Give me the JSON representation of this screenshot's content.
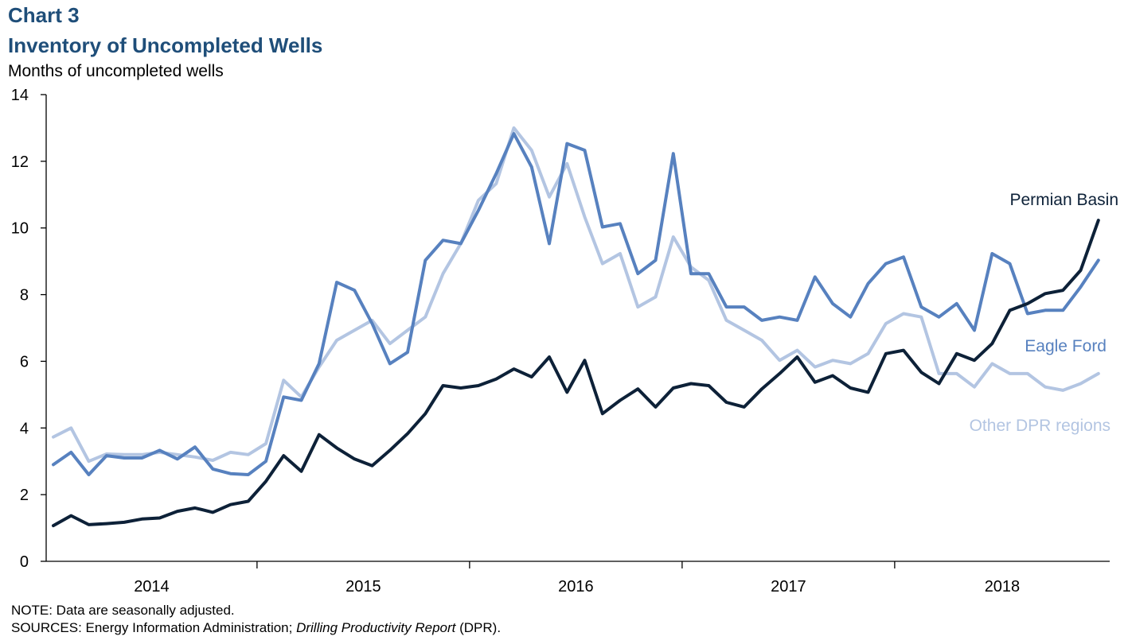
{
  "header": {
    "chart_label": "Chart 3",
    "title": "Inventory of Uncompleted Wells",
    "ylabel": "Months of uncompleted wells"
  },
  "footer": {
    "note": "NOTE: Data are seasonally adjusted.",
    "sources_prefix": "SOURCES: Energy Information Administration; ",
    "sources_report": "Drilling Productivity Report",
    "sources_suffix": " (DPR)."
  },
  "colors": {
    "permian": "#0d2138",
    "eagle": "#5781bf",
    "other": "#b3c5e2",
    "title": "#1f4e79"
  },
  "chart_data": {
    "type": "line",
    "title": "Inventory of Uncompleted Wells",
    "ylabel": "Months of uncompleted wells",
    "xlabel": "",
    "ylim": [
      0,
      14
    ],
    "yticks": [
      0,
      2,
      4,
      6,
      8,
      10,
      12,
      14
    ],
    "year_labels": [
      "2014",
      "2015",
      "2016",
      "2017",
      "2018"
    ],
    "grid": false,
    "legend": "inline labels at right",
    "series": [
      {
        "name": "Other DPR regions",
        "values": [
          3.73,
          4.0,
          3.0,
          3.22,
          3.2,
          3.2,
          3.27,
          3.2,
          3.13,
          3.03,
          3.27,
          3.2,
          3.53,
          5.43,
          4.93,
          5.83,
          6.63,
          6.93,
          7.23,
          6.53,
          6.93,
          7.33,
          8.63,
          9.53,
          10.83,
          11.33,
          13.0,
          12.33,
          10.93,
          11.93,
          10.33,
          8.93,
          9.23,
          7.63,
          7.93,
          9.73,
          8.83,
          8.43,
          7.23,
          6.93,
          6.63,
          6.03,
          6.33,
          5.83,
          6.03,
          5.93,
          6.23,
          7.13,
          7.43,
          7.33,
          5.63,
          5.63,
          5.23,
          5.93,
          5.63,
          5.63,
          5.23,
          5.13,
          5.33,
          5.63
        ]
      },
      {
        "name": "Eagle Ford",
        "values": [
          2.9,
          3.27,
          2.6,
          3.17,
          3.1,
          3.1,
          3.33,
          3.07,
          3.43,
          2.77,
          2.63,
          2.6,
          3.0,
          4.93,
          4.83,
          5.93,
          8.37,
          8.13,
          7.13,
          5.93,
          6.27,
          9.03,
          9.63,
          9.53,
          10.53,
          11.63,
          12.83,
          11.83,
          9.53,
          12.53,
          12.33,
          10.03,
          10.13,
          8.63,
          9.03,
          12.23,
          8.63,
          8.63,
          7.63,
          7.63,
          7.23,
          7.33,
          7.23,
          8.53,
          7.73,
          7.33,
          8.33,
          8.93,
          9.13,
          7.63,
          7.33,
          7.73,
          6.93,
          9.23,
          8.93,
          7.43,
          7.53,
          7.53,
          8.23,
          9.03
        ]
      },
      {
        "name": "Permian Basin",
        "values": [
          1.07,
          1.37,
          1.1,
          1.13,
          1.17,
          1.27,
          1.3,
          1.5,
          1.6,
          1.47,
          1.7,
          1.8,
          2.4,
          3.17,
          2.7,
          3.8,
          3.4,
          3.07,
          2.87,
          3.33,
          3.83,
          4.43,
          5.27,
          5.2,
          5.27,
          5.47,
          5.77,
          5.53,
          6.13,
          5.07,
          6.03,
          4.43,
          4.83,
          5.17,
          4.63,
          5.2,
          5.33,
          5.27,
          4.77,
          4.63,
          5.17,
          5.63,
          6.13,
          5.37,
          5.57,
          5.2,
          5.07,
          6.23,
          6.33,
          5.67,
          5.33,
          6.23,
          6.03,
          6.53,
          7.53,
          7.73,
          8.03,
          8.13,
          8.73,
          10.23
        ]
      }
    ]
  }
}
